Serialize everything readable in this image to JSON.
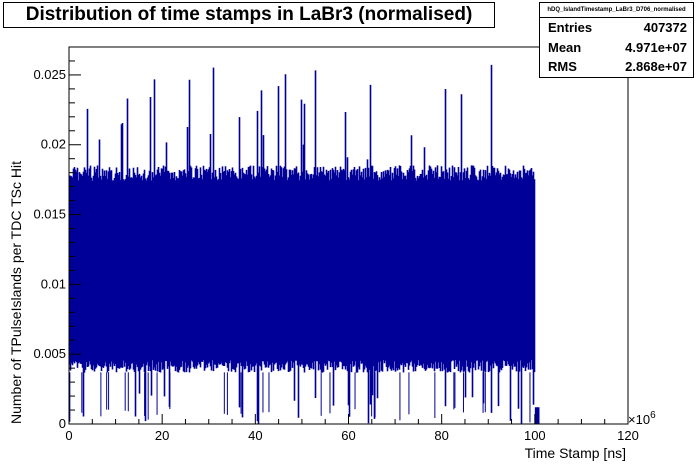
{
  "chart_data": {
    "type": "histogram",
    "title": "Distribution of time stamps in LaBr3 (normalised)",
    "xlabel": "Time Stamp [ns]",
    "ylabel": "Number of TPulseIslands per TDC TSc Hit",
    "x_exponent_label": "×10",
    "x_exponent_power": "6",
    "xlim": [
      0,
      120000000
    ],
    "ylim": [
      0,
      0.027
    ],
    "x_ticks": [
      {
        "value": 0,
        "label": "0"
      },
      {
        "value": 20000000,
        "label": "20"
      },
      {
        "value": 40000000,
        "label": "40"
      },
      {
        "value": 60000000,
        "label": "60"
      },
      {
        "value": 80000000,
        "label": "80"
      },
      {
        "value": 100000000,
        "label": "100"
      },
      {
        "value": 120000000,
        "label": "120"
      }
    ],
    "y_ticks": [
      {
        "value": 0,
        "label": "0"
      },
      {
        "value": 0.005,
        "label": "0.005"
      },
      {
        "value": 0.01,
        "label": "0.01"
      },
      {
        "value": 0.015,
        "label": "0.015"
      },
      {
        "value": 0.02,
        "label": "0.02"
      },
      {
        "value": 0.025,
        "label": "0.025"
      }
    ],
    "bin_width": 100000,
    "data_range": [
      0,
      100000000
    ],
    "typical_band": [
      0.0037,
      0.0185
    ],
    "max_value": 0.0258,
    "tail": {
      "x_start": 100000000,
      "x_end": 101000000,
      "value": 0.0012
    },
    "fill_color": "#000099",
    "line_color": "#000099",
    "stats": {
      "name": "hDQ_IslandTimestamp_LaBr3_D706_normalised",
      "rows": [
        {
          "label": "Entries",
          "value": "407372"
        },
        {
          "label": "Mean",
          "value": "4.971e+07"
        },
        {
          "label": "RMS",
          "value": "2.868e+07"
        }
      ]
    }
  }
}
